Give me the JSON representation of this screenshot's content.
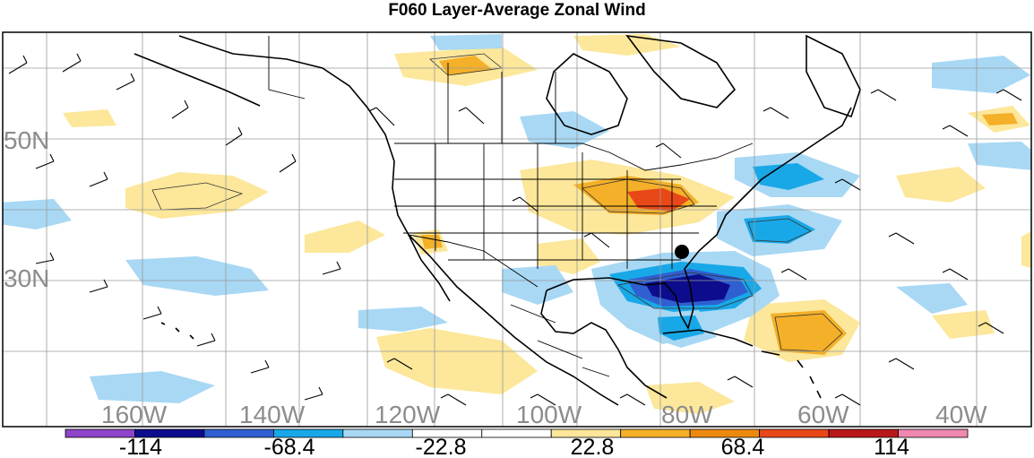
{
  "title": "F060 Layer-Average Zonal Wind",
  "map": {
    "lat_labels": [
      "50N",
      "30N"
    ],
    "lon_labels": [
      "160W",
      "140W",
      "120W",
      "100W",
      "80W",
      "60W",
      "40W"
    ],
    "marker": "storm-center-dot"
  },
  "colorbar": {
    "colors": [
      "#8e44c9",
      "#0c0c8c",
      "#2f5fd0",
      "#18a8e8",
      "#a8d8f4",
      "#ffffff",
      "#ffffff",
      "#fce79a",
      "#f4b028",
      "#ec8a10",
      "#e84818",
      "#b81818",
      "#f088b0"
    ],
    "tick_labels": [
      "-114",
      "-68.4",
      "-22.8",
      "22.8",
      "68.4",
      "114"
    ]
  }
}
